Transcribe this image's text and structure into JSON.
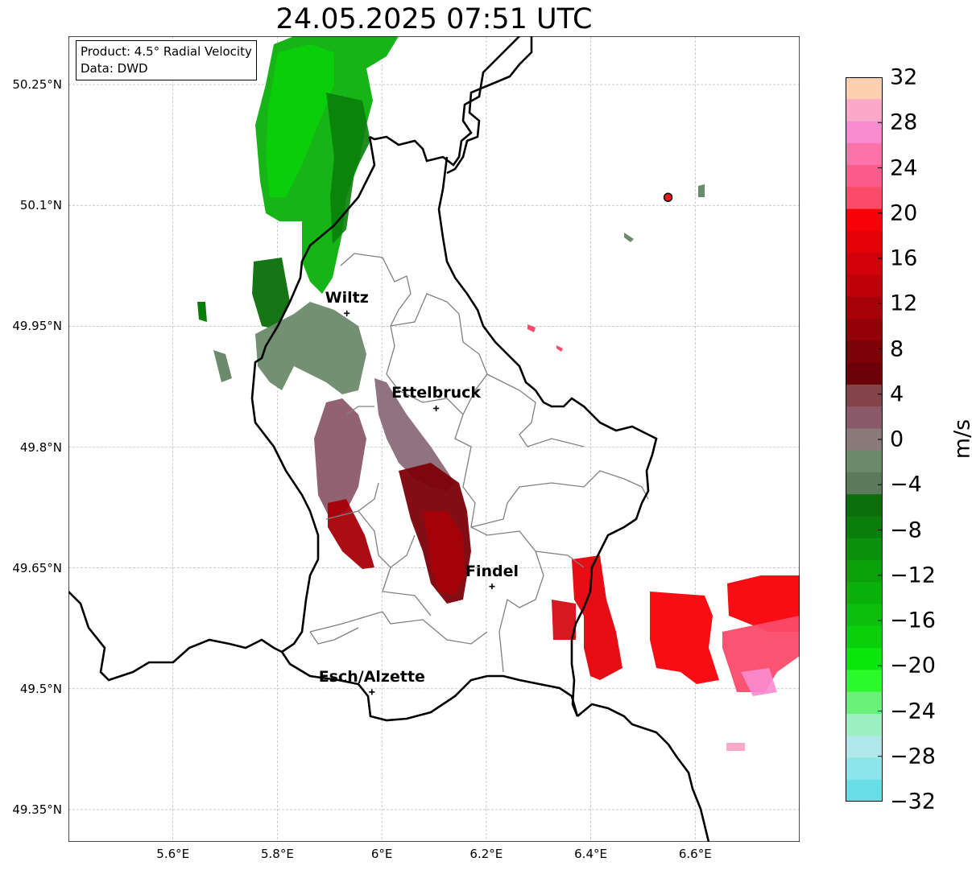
{
  "title": "24.05.2025 07:51 UTC",
  "info": {
    "product": "Product: 4.5° Radial Velocity",
    "source": "Data: DWD"
  },
  "axes": {
    "lat_ticks": [
      "50.25°N",
      "50.1°N",
      "49.95°N",
      "49.8°N",
      "49.65°N",
      "49.5°N",
      "49.35°N"
    ],
    "lon_ticks": [
      "5.6°E",
      "5.8°E",
      "6°E",
      "6.2°E",
      "6.4°E",
      "6.6°E"
    ]
  },
  "places": [
    {
      "name": "Wiltz",
      "lat": 49.966,
      "lon": 5.933
    },
    {
      "name": "Ettelbruck",
      "lat": 49.848,
      "lon": 6.104
    },
    {
      "name": "Findel",
      "lat": 49.627,
      "lon": 6.211
    },
    {
      "name": "Esch/Alzette",
      "lat": 49.496,
      "lon": 5.981
    }
  ],
  "radar_site": {
    "lat": 50.11,
    "lon": 6.548,
    "color": "#e8191c"
  },
  "colorbar": {
    "unit": "m/s",
    "tick_labels": [
      "32",
      "28",
      "24",
      "20",
      "16",
      "12",
      "8",
      "4",
      "0",
      "−4",
      "−8",
      "−12",
      "−16",
      "−20",
      "−24",
      "−28",
      "−32"
    ],
    "colors_top_to_bottom": [
      "#fdd0b0",
      "#fca8c8",
      "#f98bd0",
      "#fb73a8",
      "#fc5a8a",
      "#fb4a6a",
      "#f90008",
      "#e50008",
      "#d20008",
      "#bf0008",
      "#a80008",
      "#930008",
      "#7c0008",
      "#6b0008",
      "#82434a",
      "#8a5a6a",
      "#8a7a7a",
      "#6b8a6a",
      "#5a7a5a",
      "#0a6e0a",
      "#0a7e0a",
      "#0a900a",
      "#0aa00a",
      "#0ab00a",
      "#0ac00a",
      "#0ad00a",
      "#0ae80a",
      "#2afa2a",
      "#6af07a",
      "#9af0c0",
      "#b0e8ea",
      "#8ae6e8",
      "#6adee6"
    ]
  },
  "chart_data": {
    "type": "map",
    "title": "24.05.2025 07:51 UTC",
    "product": "4.5° Radial Velocity",
    "source": "DWD",
    "extent": {
      "lon": [
        5.4,
        6.8
      ],
      "lat": [
        49.31,
        50.31
      ]
    },
    "colorbar_range": [
      -32,
      32
    ],
    "grid": true,
    "echo_regions": [
      {
        "area": "north of Wiltz",
        "velocity_ms": [
          -20,
          -8
        ]
      },
      {
        "area": "west of Wiltz",
        "velocity_ms": [
          -6,
          0
        ]
      },
      {
        "area": "southwest of Ettelbruck",
        "velocity_ms": [
          4,
          14
        ]
      },
      {
        "area": "Ettelbruck toward Findel",
        "velocity_ms": [
          4,
          14
        ]
      },
      {
        "area": "east of Findel (6.4–6.8°E)",
        "velocity_ms": [
          18,
          32
        ]
      }
    ]
  }
}
